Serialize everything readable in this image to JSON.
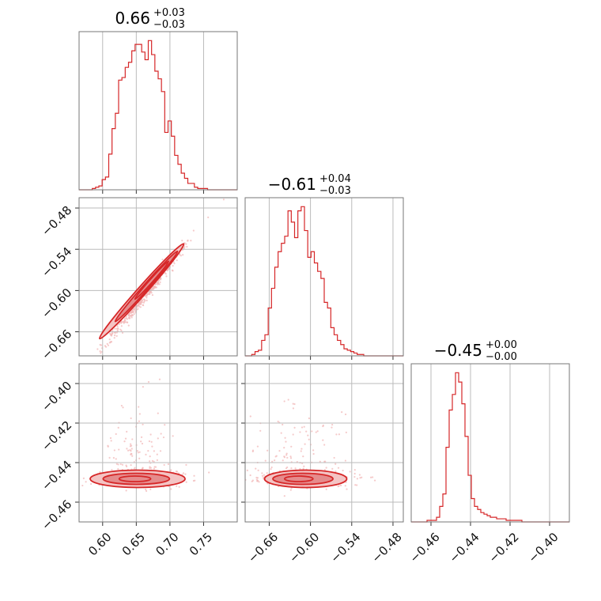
{
  "colors": {
    "accent": "#d62728",
    "fill_inner": "#e58b8c",
    "fill_outer": "#f4c4c4",
    "scatter": "#f2b8b8"
  },
  "chart_data": [
    {
      "type": "histogram",
      "panel": "p00",
      "param": 0,
      "title": {
        "value": "0.66",
        "plus": "+0.03",
        "minus": "−0.03"
      },
      "xlim": [
        0.565,
        0.8
      ],
      "bin_edges_range": [
        0.565,
        0.8
      ],
      "num_bins": 48,
      "counts": [
        0,
        0,
        0,
        0,
        1,
        2,
        3,
        8,
        10,
        28,
        48,
        60,
        86,
        88,
        96,
        100,
        109,
        114,
        114,
        108,
        102,
        117,
        106,
        93,
        87,
        77,
        45,
        54,
        42,
        27,
        20,
        13,
        9,
        5,
        5,
        2,
        1,
        1,
        1,
        0,
        0,
        0,
        0,
        0,
        0,
        0,
        0,
        0
      ]
    },
    {
      "type": "histogram",
      "panel": "p11",
      "param": 1,
      "title": {
        "value": "−0.61",
        "plus": "+0.04",
        "minus": "−0.03"
      },
      "xlim": [
        -0.695,
        -0.465
      ],
      "bin_edges_range": [
        -0.695,
        -0.465
      ],
      "num_bins": 48,
      "counts": [
        0,
        0,
        1,
        3,
        4,
        11,
        15,
        34,
        48,
        63,
        74,
        80,
        85,
        103,
        95,
        84,
        103,
        106,
        89,
        70,
        74,
        66,
        60,
        55,
        38,
        34,
        20,
        15,
        11,
        8,
        5,
        4,
        3,
        2,
        1,
        1,
        0,
        0,
        0,
        0,
        0,
        0,
        0,
        0,
        0,
        0,
        0,
        0
      ]
    },
    {
      "type": "histogram",
      "panel": "p22",
      "param": 2,
      "title": {
        "value": "−0.45",
        "plus": "+0.00",
        "minus": "−0.00"
      },
      "xlim": [
        -0.47,
        -0.39
      ],
      "bin_edges_range": [
        -0.47,
        -0.39
      ],
      "num_bins": 50,
      "counts": [
        0,
        0,
        0,
        0,
        0,
        1,
        1,
        1,
        3,
        10,
        18,
        48,
        72,
        82,
        96,
        90,
        76,
        55,
        30,
        15,
        10,
        8,
        6,
        5,
        4,
        3,
        3,
        2,
        2,
        2,
        1,
        1,
        1,
        1,
        1,
        0,
        0,
        0,
        0,
        0,
        0,
        0,
        0,
        0,
        0,
        0,
        0,
        0,
        0,
        0
      ]
    },
    {
      "type": "contour",
      "panel": "p10",
      "xparam": 0,
      "yparam": 1,
      "xlim": [
        0.565,
        0.8
      ],
      "ylim": [
        -0.695,
        -0.465
      ],
      "correlation": "strong positive",
      "center": [
        0.662,
        -0.607
      ]
    },
    {
      "type": "contour",
      "panel": "p20",
      "xparam": 0,
      "yparam": 2,
      "xlim": [
        0.565,
        0.8
      ],
      "ylim": [
        -0.47,
        -0.39
      ],
      "center": [
        0.652,
        -0.4482
      ]
    },
    {
      "type": "contour",
      "panel": "p21",
      "xparam": 1,
      "yparam": 2,
      "xlim": [
        -0.695,
        -0.465
      ],
      "ylim": [
        -0.47,
        -0.39
      ],
      "center": [
        -0.618,
        -0.4482
      ]
    }
  ],
  "axes": {
    "p0": {
      "ticks": [
        0.6,
        0.65,
        0.7,
        0.75
      ],
      "labels": [
        "0.60",
        "0.65",
        "0.70",
        "0.75"
      ]
    },
    "p1": {
      "ticks": [
        -0.66,
        -0.6,
        -0.54,
        -0.48
      ],
      "labels": [
        "−0.66",
        "−0.60",
        "−0.54",
        "−0.48"
      ]
    },
    "p2": {
      "ticks": [
        -0.46,
        -0.44,
        -0.42,
        -0.4
      ],
      "labels": [
        "−0.46",
        "−0.44",
        "−0.42",
        "−0.40"
      ]
    }
  },
  "grid": true
}
